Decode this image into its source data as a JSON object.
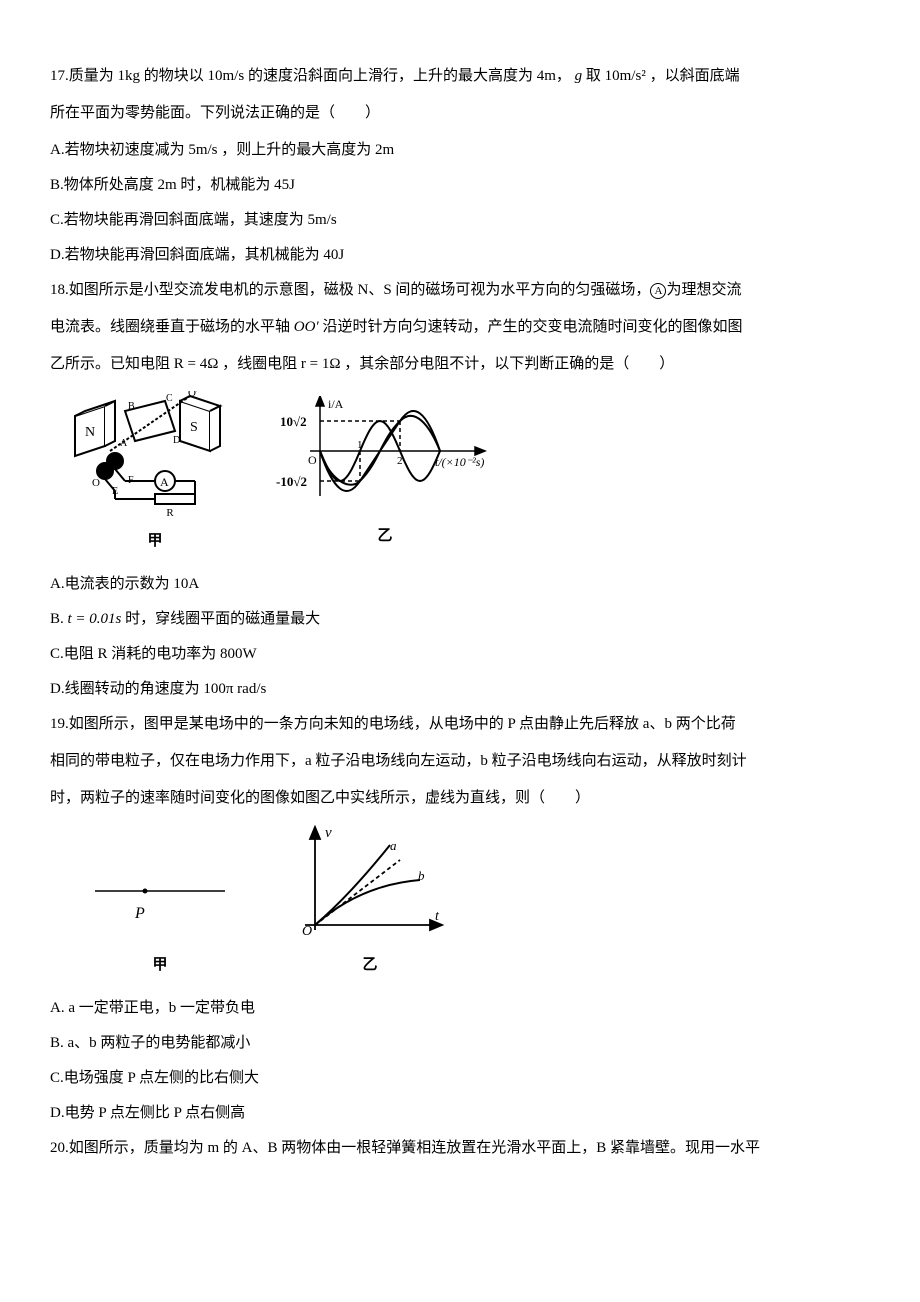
{
  "q17": {
    "stem_a": "17.质量为 1kg 的物块以",
    "speed1": "10m/s",
    "stem_b": "的速度沿斜面向上滑行，上升的最大高度为 4m，",
    "gvar": "g",
    "stem_c": "取",
    "gval": "10m/s²",
    "stem_d": "，以斜面底端",
    "stem2": "所在平面为零势能面。下列说法正确的是（　　）",
    "optA_a": "A.若物块初速度减为",
    "optA_v": "5m/s",
    "optA_b": "，则上升的最大高度为 2m",
    "optB": "B.物体所处高度 2m 时，机械能为 45J",
    "optC_a": "C.若物块能再滑回斜面底端，其速度为",
    "optC_v": "5m/s",
    "optD": "D.若物块能再滑回斜面底端，其机械能为 40J"
  },
  "q18": {
    "stem_a": "18.如图所示是小型交流发电机的示意图，磁极 N、S 间的磁场可视为水平方向的匀强磁场，",
    "stem_b": "为理想交流",
    "stem2_a": "电流表。线圈绕垂直于磁场的水平轴",
    "axis": "OO′",
    "stem2_b": "沿逆时针方向匀速转动，产生的交变电流随时间变化的图像如图",
    "stem3_a": "乙所示。已知电阻",
    "Rval": "R = 4Ω",
    "stem3_b": "，线圈电阻",
    "rval": "r = 1Ω",
    "stem3_c": "，其余部分电阻不计，以下判断正确的是（　　）",
    "optA": "A.电流表的示数为 10A",
    "optB_a": "B.",
    "optB_t": "t = 0.01s",
    "optB_b": "时，穿线圈平面的磁通量最大",
    "optC": "C.电阻 R 消耗的电功率为 800W",
    "optD_a": "D.线圈转动的角速度为",
    "optD_w": "100π rad/s",
    "fig1_caption": "甲",
    "fig2_caption": "乙",
    "chart": {
      "ylabel_top": "10√2",
      "ylabel_bot": "-10√2",
      "yaxis": "i/A",
      "xaxis": "t/(×10⁻²s)",
      "xtick1": "1",
      "xtick2": "2",
      "origin": "O",
      "amplitude": 30,
      "period": 80,
      "axis_color": "#000",
      "curve_color": "#000",
      "dash_color": "#000"
    }
  },
  "q19": {
    "stem1": "19.如图所示，图甲是某电场中的一条方向未知的电场线，从电场中的 P 点由静止先后释放 a、b 两个比荷",
    "stem2": "相同的带电粒子，仅在电场力作用下，a 粒子沿电场线向左运动，b 粒子沿电场线向右运动，从释放时刻计",
    "stem3": "时，两粒子的速率随时间变化的图像如图乙中实线所示，虚线为直线，则（　　）",
    "optA": "A. a 一定带正电，b 一定带负电",
    "optB": "B. a、b 两粒子的电势能都减小",
    "optC": "C.电场强度 P 点左侧的比右侧大",
    "optD": "D.电势 P 点左侧比 P 点右侧高",
    "fig1_caption": "甲",
    "fig2_caption": "乙",
    "P_label": "P",
    "chart": {
      "yaxis": "v",
      "xaxis": "t",
      "origin": "O",
      "label_a": "a",
      "label_b": "b",
      "axis_color": "#000"
    }
  },
  "q20": {
    "stem1": "20.如图所示，质量均为 m 的 A、B 两物体由一根轻弹簧相连放置在光滑水平面上，B 紧靠墙壁。现用一水平"
  }
}
